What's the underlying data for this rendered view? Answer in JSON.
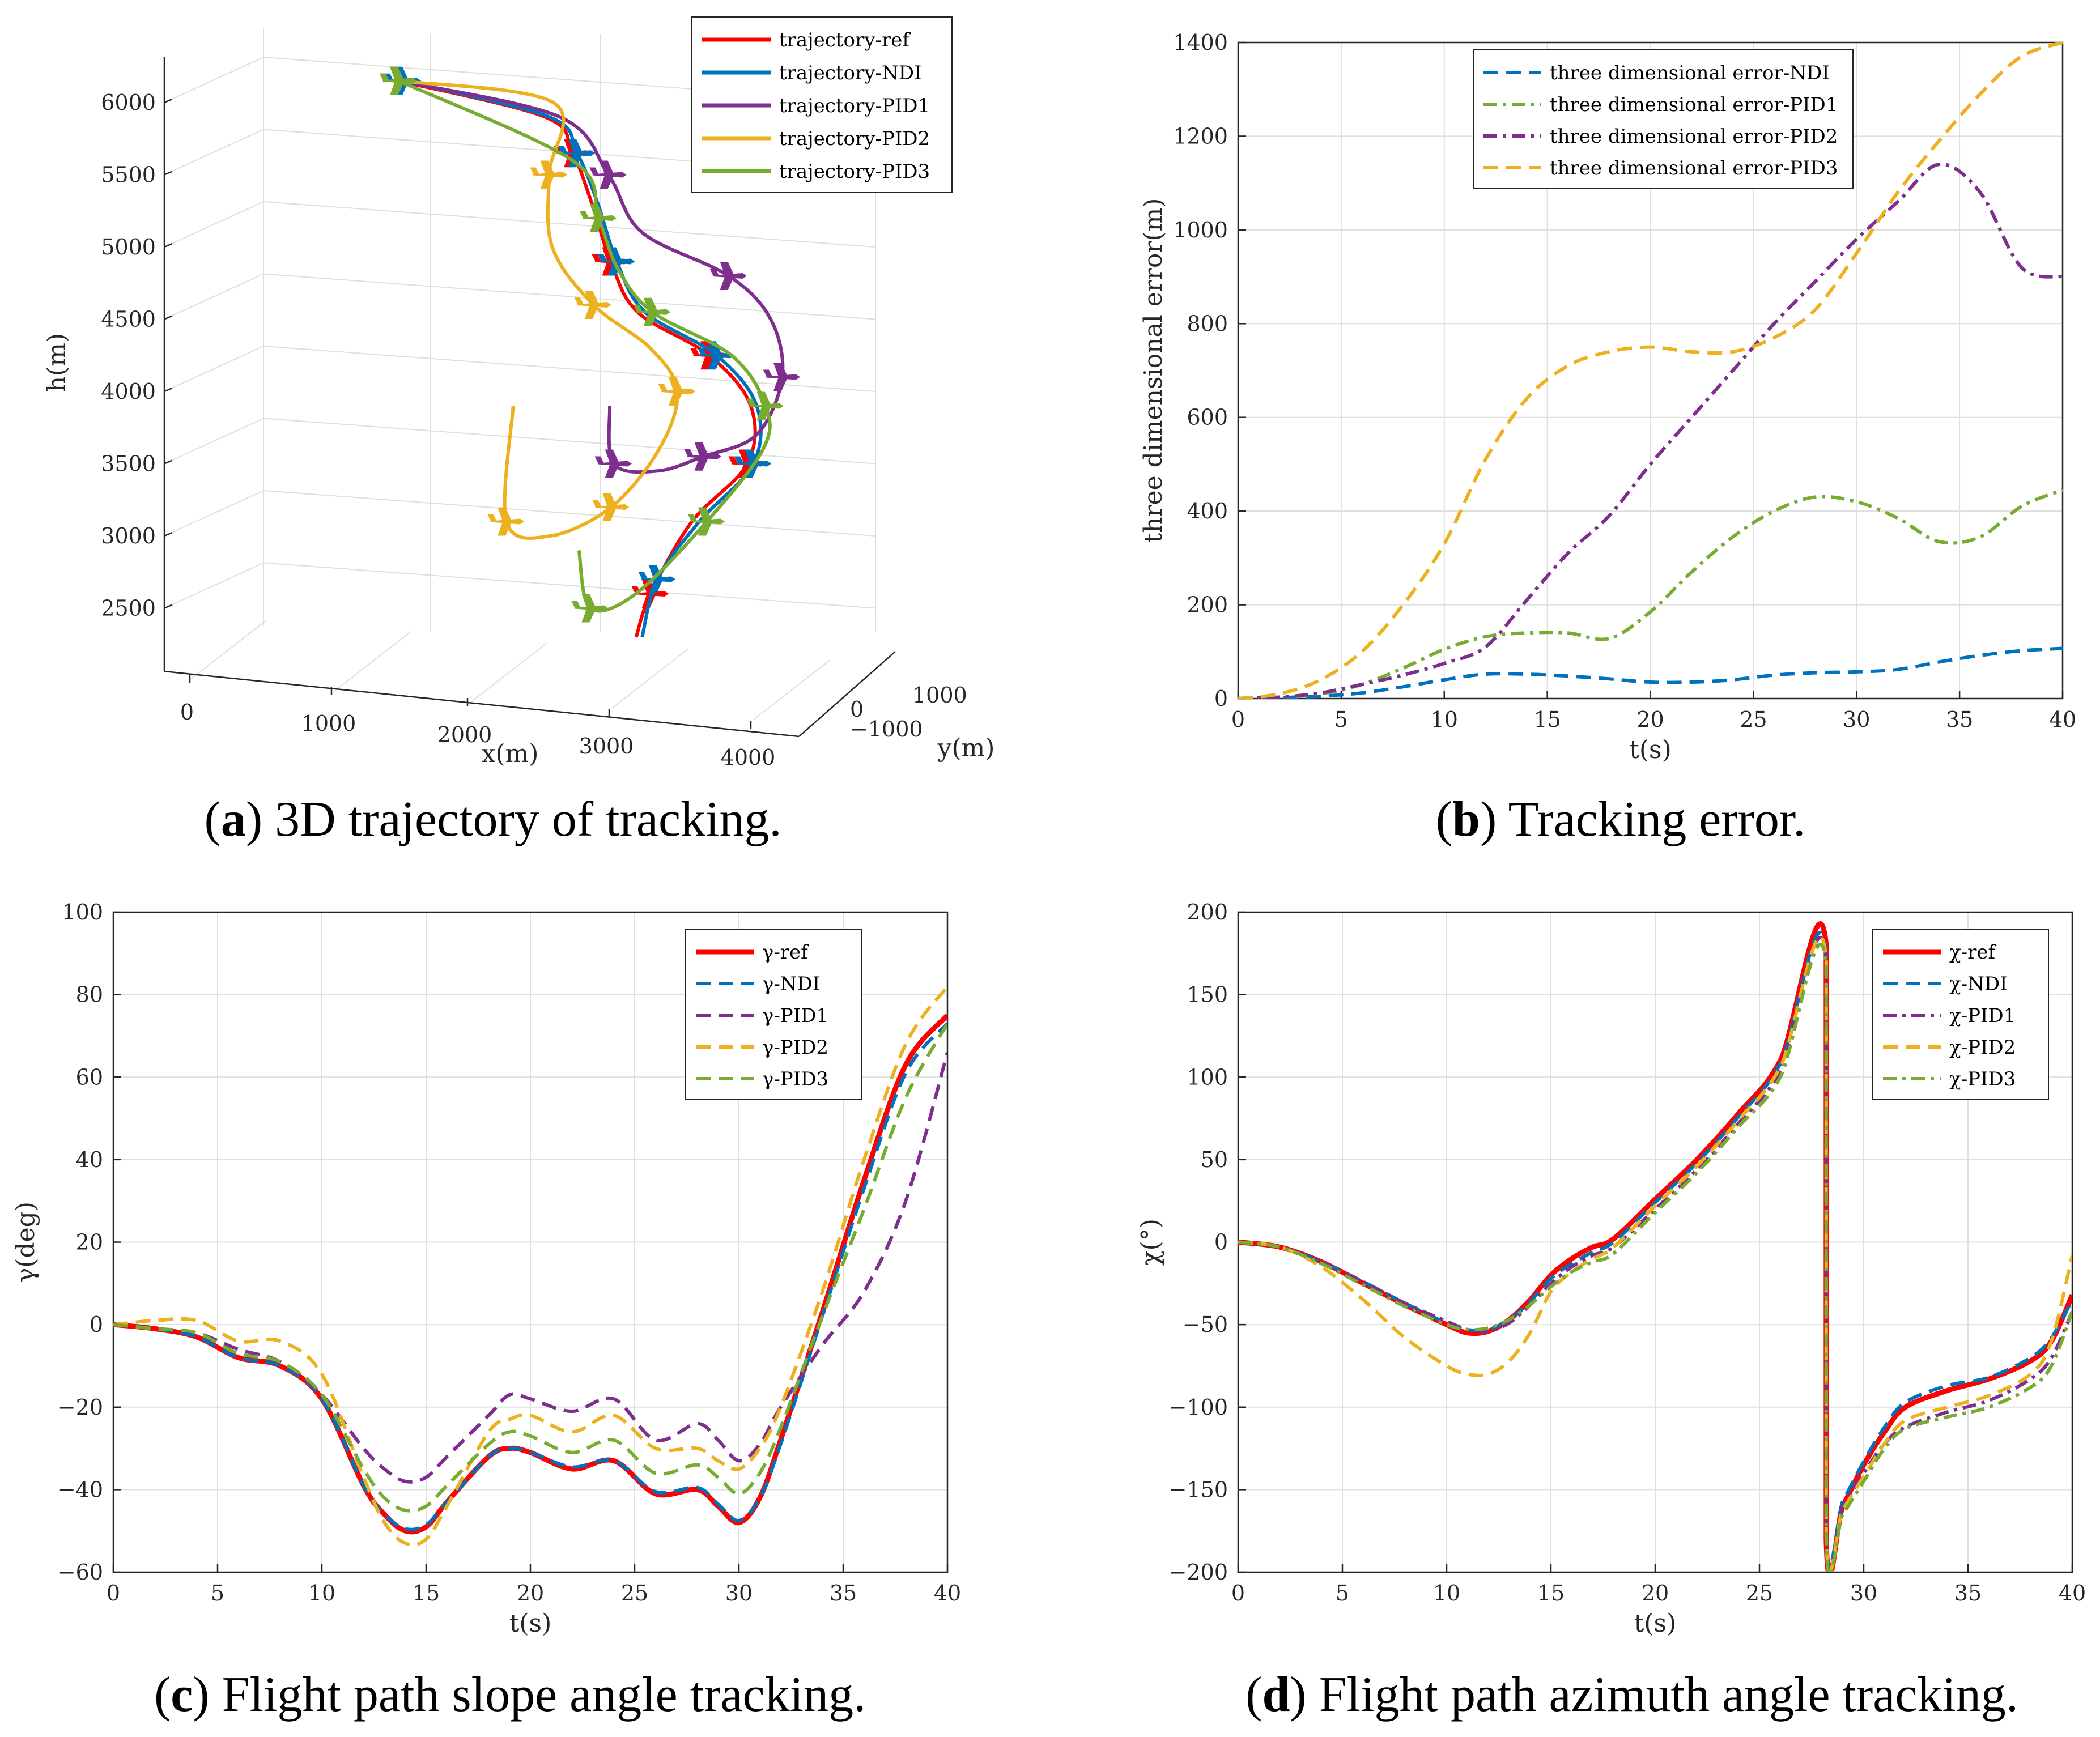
{
  "colors": {
    "ref": "#ff0000",
    "ndi": "#0072bd",
    "pid1": "#7e2f8e",
    "pid2": "#edb120",
    "pid3": "#77ac30"
  },
  "captions": {
    "a_letter": "a",
    "a_text": " 3D trajectory of tracking.",
    "b_letter": "b",
    "b_text": " Tracking error.",
    "c_letter": "c",
    "c_text": " Flight path slope angle tracking.",
    "d_letter": "d",
    "d_text": " Flight path azimuth angle tracking."
  },
  "chart_data": [
    {
      "id": "a",
      "type": "line",
      "subtype": "3d-trajectory",
      "xlabel": "x(m)",
      "ylabel": "y(m)",
      "zlabel": "h(m)",
      "x_ticks": [
        "0",
        "1000",
        "2000",
        "3000",
        "4000"
      ],
      "y_ticks": [
        "−1000",
        "0",
        "1000"
      ],
      "z_ticks": [
        "2500",
        "3000",
        "3500",
        "4000",
        "4500",
        "5000",
        "5500",
        "6000"
      ],
      "xlim": [
        0,
        4000
      ],
      "zlim": [
        2200,
        6200
      ],
      "legend": "top-right",
      "series": [
        {
          "name": "trajectory-ref",
          "color_key": "ref",
          "h": [
            2300,
            2600,
            3100,
            3500,
            3900,
            4250,
            4550,
            4900,
            5300,
            5650,
            5900,
            6150
          ],
          "x_proj": [
            3020,
            3100,
            3350,
            3700,
            3700,
            3400,
            2900,
            2700,
            2550,
            2400,
            2200,
            1200
          ]
        },
        {
          "name": "trajectory-NDI",
          "color_key": "ndi",
          "h": [
            2300,
            2700,
            3100,
            3500,
            3900,
            4250,
            4550,
            4900,
            5300,
            5650,
            5900,
            6150
          ],
          "x_proj": [
            3060,
            3140,
            3400,
            3740,
            3740,
            3450,
            2950,
            2740,
            2590,
            2430,
            2230,
            1230
          ]
        },
        {
          "name": "trajectory-PID1",
          "color_key": "pid1",
          "h": [
            3900,
            3500,
            3450,
            3550,
            3700,
            4100,
            4500,
            4800,
            5100,
            5500,
            5900,
            6150
          ],
          "x_proj": [
            2750,
            2800,
            3100,
            3400,
            3750,
            3900,
            3800,
            3500,
            2900,
            2650,
            2300,
            1200
          ]
        },
        {
          "name": "trajectory-PID2",
          "color_key": "pid2",
          "h": [
            3900,
            3100,
            3000,
            3200,
            3600,
            4000,
            4300,
            4600,
            5000,
            5500,
            6000,
            6150
          ],
          "x_proj": [
            2100,
            2100,
            2400,
            2800,
            3100,
            3200,
            3000,
            2600,
            2300,
            2250,
            2250,
            1200
          ]
        },
        {
          "name": "trajectory-PID3",
          "color_key": "pid3",
          "h": [
            2900,
            2500,
            2600,
            3100,
            3600,
            3900,
            4250,
            4550,
            4850,
            5200,
            5600,
            6150
          ],
          "x_proj": [
            2600,
            2700,
            3000,
            3450,
            3800,
            3800,
            3550,
            3000,
            2750,
            2600,
            2400,
            1200
          ]
        }
      ]
    },
    {
      "id": "b",
      "type": "line",
      "xlabel": "t(s)",
      "ylabel": "three dimensional error(m)",
      "xlim": [
        0,
        40
      ],
      "ylim": [
        0,
        1400
      ],
      "x_ticks": [
        "0",
        "5",
        "10",
        "15",
        "20",
        "25",
        "30",
        "35",
        "40"
      ],
      "y_ticks": [
        "0",
        "200",
        "400",
        "600",
        "800",
        "1000",
        "1200",
        "1400"
      ],
      "grid": true,
      "legend": "top-left",
      "x": [
        0,
        2,
        4,
        6,
        8,
        10,
        12,
        14,
        16,
        18,
        20,
        22,
        24,
        26,
        28,
        30,
        32,
        34,
        36,
        38,
        40
      ],
      "series": [
        {
          "name": "three dimensional error-NDI",
          "color_key": "ndi",
          "dash": "dash",
          "values": [
            0,
            2,
            5,
            12,
            25,
            40,
            52,
            52,
            48,
            42,
            35,
            35,
            40,
            50,
            55,
            57,
            62,
            78,
            92,
            102,
            107
          ]
        },
        {
          "name": "three dimensional error-PID1",
          "color_key": "pid3",
          "dash": "dashdot",
          "values": [
            0,
            3,
            10,
            30,
            65,
            105,
            132,
            140,
            140,
            128,
            185,
            270,
            345,
            400,
            430,
            420,
            385,
            335,
            345,
            410,
            445
          ]
        },
        {
          "name": "three dimensional error-PID2",
          "color_key": "pid1",
          "dash": "dashdot",
          "values": [
            0,
            3,
            12,
            30,
            50,
            75,
            110,
            210,
            310,
            390,
            500,
            600,
            700,
            800,
            890,
            980,
            1060,
            1140,
            1080,
            920,
            900
          ]
        },
        {
          "name": "three dimensional error-PID3",
          "color_key": "pid2",
          "dash": "dash",
          "values": [
            0,
            10,
            40,
            100,
            200,
            330,
            510,
            640,
            710,
            740,
            750,
            740,
            740,
            770,
            830,
            950,
            1080,
            1190,
            1290,
            1370,
            1400
          ]
        }
      ]
    },
    {
      "id": "c",
      "type": "line",
      "xlabel": "t(s)",
      "ylabel": "γ(deg)",
      "xlim": [
        0,
        40
      ],
      "ylim": [
        -60,
        100
      ],
      "x_ticks": [
        "0",
        "5",
        "10",
        "15",
        "20",
        "25",
        "30",
        "35",
        "40"
      ],
      "y_ticks": [
        "−60",
        "−40",
        "−20",
        "0",
        "20",
        "40",
        "60",
        "80",
        "100"
      ],
      "grid": true,
      "legend": "top-right",
      "x": [
        0,
        2,
        4,
        6,
        8,
        10,
        12,
        13,
        14,
        15,
        16,
        18,
        19,
        20,
        22,
        24,
        26,
        28,
        29,
        30,
        31,
        32,
        34,
        36,
        38,
        40
      ],
      "series": [
        {
          "name": "γ-ref",
          "color_key": "ref",
          "dash": "solid",
          "bold": true,
          "values": [
            0,
            -1,
            -3,
            -8,
            -10,
            -18,
            -39,
            -46,
            -50,
            -49,
            -43,
            -32,
            -30,
            -31,
            -35,
            -33,
            -41,
            -40,
            -44,
            -48,
            -42,
            -28,
            3,
            35,
            63,
            75
          ]
        },
        {
          "name": "γ-NDI",
          "color_key": "ndi",
          "dash": "dash",
          "values": [
            0,
            -1,
            -3,
            -8,
            -10,
            -18,
            -39,
            -46,
            -49.5,
            -48.5,
            -43,
            -32,
            -30,
            -31,
            -34.5,
            -33,
            -40.5,
            -39.5,
            -43.5,
            -47.5,
            -42,
            -29,
            2,
            33,
            61,
            73
          ]
        },
        {
          "name": "γ-PID1",
          "color_key": "pid1",
          "dash": "dash",
          "values": [
            0,
            -1,
            -2,
            -6,
            -9,
            -17,
            -30,
            -35,
            -38,
            -37,
            -32,
            -22,
            -17,
            -18,
            -21,
            -18,
            -28,
            -24,
            -28,
            -33,
            -29,
            -20,
            -5,
            8,
            30,
            66
          ]
        },
        {
          "name": "γ-PID2",
          "color_key": "pid2",
          "dash": "dash",
          "values": [
            0,
            1,
            1,
            -4,
            -4,
            -12,
            -37,
            -48,
            -53,
            -52,
            -44,
            -26,
            -23,
            -22,
            -26,
            -22,
            -30,
            -30,
            -33,
            -35,
            -30,
            -20,
            8,
            40,
            68,
            82
          ]
        },
        {
          "name": "γ-PID3",
          "color_key": "pid3",
          "dash": "dash",
          "values": [
            0,
            -1,
            -2,
            -7,
            -9,
            -17,
            -35,
            -42,
            -45,
            -44,
            -39,
            -29,
            -26,
            -27,
            -31,
            -28,
            -36,
            -34,
            -37,
            -41,
            -36,
            -25,
            2,
            28,
            55,
            73
          ]
        }
      ]
    },
    {
      "id": "d",
      "type": "line",
      "xlabel": "t(s)",
      "ylabel": "χ(°)",
      "xlim": [
        0,
        40
      ],
      "ylim": [
        -200,
        200
      ],
      "x_ticks": [
        "0",
        "5",
        "10",
        "15",
        "20",
        "25",
        "30",
        "35",
        "40"
      ],
      "y_ticks": [
        "−200",
        "−150",
        "−100",
        "−50",
        "0",
        "50",
        "100",
        "150",
        "200"
      ],
      "grid": true,
      "legend": "top-right",
      "x": [
        0,
        2,
        4,
        6,
        8,
        10,
        11,
        12,
        13,
        14,
        15,
        16,
        17,
        18,
        20,
        22,
        24,
        26,
        28.2,
        28.2,
        29,
        30,
        31,
        32,
        34,
        36,
        38,
        39,
        40
      ],
      "series": [
        {
          "name": "χ-ref",
          "color_key": "ref",
          "dash": "solid",
          "bold": true,
          "values": [
            0,
            -3,
            -12,
            -25,
            -38,
            -50,
            -55,
            -54,
            -47,
            -35,
            -20,
            -10,
            -3,
            2,
            26,
            50,
            78,
            110,
            180,
            -180,
            -160,
            -135,
            -115,
            -100,
            -90,
            -83,
            -72,
            -60,
            -32
          ]
        },
        {
          "name": "χ-NDI",
          "color_key": "ndi",
          "dash": "dash",
          "values": [
            0,
            -3,
            -12,
            -24,
            -37,
            -49,
            -53,
            -53,
            -47,
            -36,
            -22,
            -13,
            -6,
            0,
            24,
            48,
            76,
            108,
            175,
            -175,
            -157,
            -133,
            -112,
            -97,
            -87,
            -82,
            -70,
            -58,
            -35
          ]
        },
        {
          "name": "χ-PID1",
          "color_key": "pid1",
          "dash": "dashdot",
          "values": [
            0,
            -3,
            -12,
            -24,
            -37,
            -48,
            -53,
            -54,
            -49,
            -38,
            -25,
            -15,
            -8,
            -3,
            20,
            44,
            72,
            104,
            172,
            -178,
            -160,
            -140,
            -122,
            -112,
            -103,
            -96,
            -83,
            -70,
            -42
          ]
        },
        {
          "name": "χ-PID2",
          "color_key": "pid2",
          "dash": "dash",
          "values": [
            0,
            -3,
            -15,
            -35,
            -58,
            -75,
            -80,
            -80,
            -72,
            -55,
            -30,
            -18,
            -10,
            -3,
            22,
            46,
            74,
            106,
            172,
            -178,
            -162,
            -142,
            -122,
            -108,
            -100,
            -93,
            -80,
            -60,
            -8
          ]
        },
        {
          "name": "χ-PID3",
          "color_key": "pid3",
          "dash": "dashdot",
          "values": [
            0,
            -3,
            -13,
            -26,
            -39,
            -50,
            -53,
            -52,
            -47,
            -38,
            -27,
            -18,
            -12,
            -7,
            18,
            42,
            70,
            100,
            168,
            -180,
            -165,
            -145,
            -125,
            -113,
            -106,
            -100,
            -88,
            -75,
            -42
          ]
        }
      ]
    }
  ]
}
